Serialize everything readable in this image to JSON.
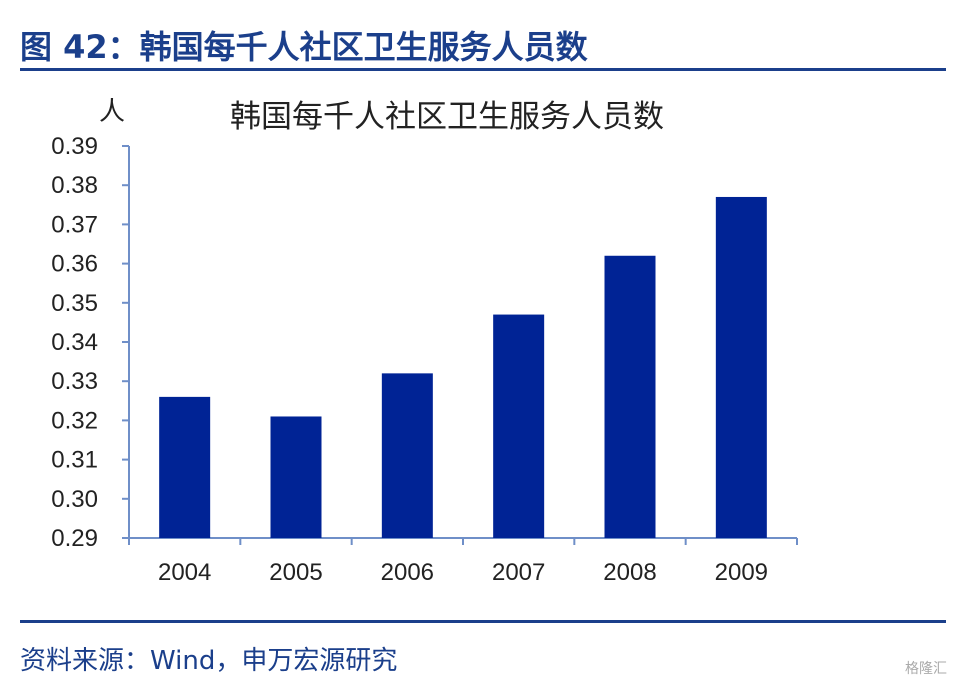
{
  "figure": {
    "title": "图 42：韩国每千人社区卫生服务人员数",
    "source": "资料来源：Wind，申万宏源研究",
    "watermark": "格隆汇"
  },
  "colors": {
    "accent": "#1b3f8b",
    "bar": "#002395",
    "axis": "#6f8fc8"
  },
  "chart_data": {
    "type": "bar",
    "title": "韩国每千人社区卫生服务人员数",
    "ylabel": "人",
    "xlabel": "",
    "categories": [
      "2004",
      "2005",
      "2006",
      "2007",
      "2008",
      "2009"
    ],
    "values": [
      0.326,
      0.321,
      0.332,
      0.347,
      0.362,
      0.377
    ],
    "ylim": [
      0.29,
      0.39
    ],
    "yticks": [
      "0.29",
      "0.30",
      "0.31",
      "0.32",
      "0.33",
      "0.34",
      "0.35",
      "0.36",
      "0.37",
      "0.38",
      "0.39"
    ],
    "grid": false,
    "legend": "none"
  }
}
